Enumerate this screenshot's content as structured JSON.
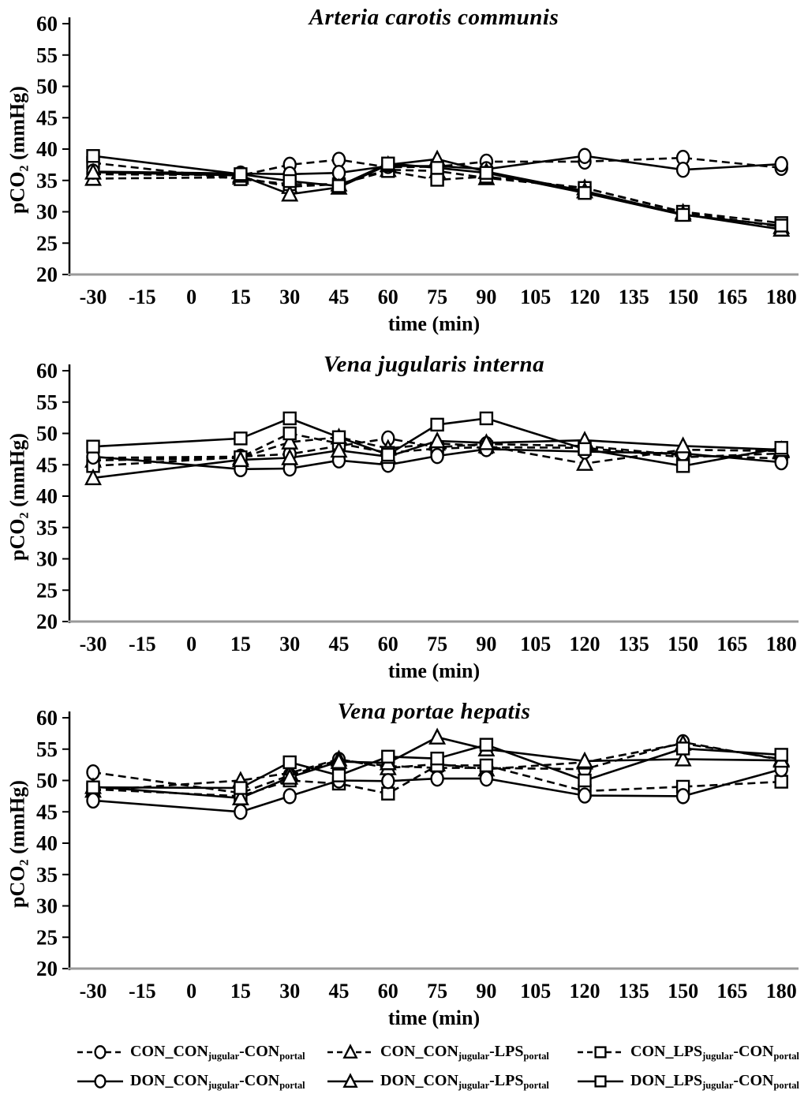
{
  "figure": {
    "ylabel": {
      "main": "pCO",
      "sub": "2",
      "rest": " (mmHg)"
    },
    "xlabel": "time (min)",
    "line_color": "#000000",
    "baseline_color": "#9a9a9a"
  },
  "chart_data": [
    {
      "type": "line",
      "title": "Arteria carotis communis",
      "xlabel": "time (min)",
      "ylabel": "pCO2 (mmHg)",
      "ylim": [
        20,
        60
      ],
      "yticks": [
        20,
        25,
        30,
        35,
        40,
        45,
        50,
        55,
        60
      ],
      "xticks": [
        -30,
        -15,
        0,
        15,
        30,
        45,
        60,
        75,
        90,
        105,
        120,
        135,
        150,
        165,
        180
      ],
      "legend_position": "below-figure",
      "grid": false,
      "x": [
        -30,
        15,
        30,
        45,
        60,
        75,
        90,
        120,
        150,
        180
      ],
      "series": [
        {
          "name": "CON_CON_jugular-CON_portal",
          "marker": "circle",
          "line": "dashed",
          "values": [
            36.0,
            35.8,
            37.5,
            38.3,
            37.1,
            37.2,
            38.0,
            38.0,
            38.6,
            37.0
          ]
        },
        {
          "name": "CON_CON_jugular-LPS_portal",
          "marker": "triangle",
          "line": "dashed",
          "values": [
            35.3,
            35.5,
            34.0,
            34.4,
            36.7,
            36.5,
            35.4,
            33.8,
            29.9,
            27.6
          ]
        },
        {
          "name": "CON_LPS_jugular-CON_portal",
          "marker": "square",
          "line": "dashed",
          "values": [
            37.8,
            35.2,
            34.4,
            34.4,
            36.5,
            35.1,
            35.6,
            33.8,
            30.0,
            28.2
          ]
        },
        {
          "name": "DON_CON_jugular-CON_portal",
          "marker": "circle",
          "line": "solid",
          "values": [
            36.4,
            36.1,
            36.0,
            36.2,
            37.3,
            37.3,
            36.8,
            38.9,
            36.7,
            37.6
          ]
        },
        {
          "name": "DON_CON_jugular-LPS_portal",
          "marker": "triangle",
          "line": "solid",
          "values": [
            36.3,
            35.8,
            32.8,
            33.9,
            37.5,
            38.4,
            36.4,
            33.3,
            29.6,
            27.2
          ]
        },
        {
          "name": "DON_LPS_jugular-CON_portal",
          "marker": "square",
          "line": "solid",
          "values": [
            38.9,
            36.0,
            34.9,
            34.1,
            37.7,
            37.0,
            36.2,
            33.0,
            29.5,
            27.8
          ]
        }
      ]
    },
    {
      "type": "line",
      "title": "Vena jugularis interna",
      "xlabel": "time (min)",
      "ylabel": "pCO2 (mmHg)",
      "ylim": [
        20,
        60
      ],
      "yticks": [
        20,
        25,
        30,
        35,
        40,
        45,
        50,
        55,
        60
      ],
      "xticks": [
        -30,
        -15,
        0,
        15,
        30,
        45,
        60,
        75,
        90,
        105,
        120,
        135,
        150,
        165,
        180
      ],
      "legend_position": "below-figure",
      "grid": false,
      "x": [
        -30,
        15,
        30,
        45,
        60,
        75,
        90,
        120,
        150,
        180
      ],
      "series": [
        {
          "name": "CON_CON_jugular-CON_portal",
          "marker": "circle",
          "line": "dashed",
          "values": [
            46.1,
            46.3,
            46.7,
            48.0,
            49.2,
            47.8,
            48.3,
            48.0,
            46.5,
            46.0
          ]
        },
        {
          "name": "CON_CON_jugular-LPS_portal",
          "marker": "triangle",
          "line": "dashed",
          "values": [
            45.7,
            46.1,
            48.6,
            49.4,
            47.6,
            48.4,
            48.0,
            45.2,
            47.4,
            47.2
          ]
        },
        {
          "name": "CON_LPS_jugular-CON_portal",
          "marker": "square",
          "line": "dashed",
          "values": [
            44.8,
            46.2,
            50.0,
            48.4,
            46.9,
            47.6,
            47.8,
            47.7,
            46.2,
            46.8
          ]
        },
        {
          "name": "DON_CON_jugular-CON_portal",
          "marker": "circle",
          "line": "solid",
          "values": [
            46.3,
            44.3,
            44.4,
            45.7,
            45.0,
            46.4,
            47.5,
            47.1,
            46.8,
            45.4
          ]
        },
        {
          "name": "DON_CON_jugular-LPS_portal",
          "marker": "triangle",
          "line": "solid",
          "values": [
            42.9,
            45.8,
            46.1,
            47.3,
            46.3,
            48.8,
            48.5,
            48.9,
            48.0,
            47.4
          ]
        },
        {
          "name": "DON_LPS_jugular-CON_portal",
          "marker": "square",
          "line": "solid",
          "values": [
            47.9,
            49.2,
            52.4,
            49.4,
            46.6,
            51.4,
            52.4,
            47.5,
            44.8,
            47.7
          ]
        }
      ]
    },
    {
      "type": "line",
      "title": "Vena portae hepatis",
      "xlabel": "time (min)",
      "ylabel": "pCO2 (mmHg)",
      "ylim": [
        20,
        60
      ],
      "yticks": [
        20,
        25,
        30,
        35,
        40,
        45,
        50,
        55,
        60
      ],
      "xticks": [
        -30,
        -15,
        0,
        15,
        30,
        45,
        60,
        75,
        90,
        105,
        120,
        135,
        150,
        165,
        180
      ],
      "legend_position": "below-figure",
      "grid": false,
      "x": [
        -30,
        15,
        30,
        45,
        60,
        75,
        90,
        120,
        150,
        180
      ],
      "series": [
        {
          "name": "CON_CON_jugular-CON_portal",
          "marker": "circle",
          "line": "dashed",
          "values": [
            51.3,
            48.0,
            50.8,
            53.3,
            52.3,
            52.0,
            52.0,
            51.8,
            56.1,
            53.3
          ]
        },
        {
          "name": "CON_CON_jugular-LPS_portal",
          "marker": "triangle",
          "line": "dashed",
          "values": [
            48.4,
            50.0,
            51.2,
            53.4,
            52.0,
            52.6,
            51.8,
            52.9,
            55.9,
            53.4
          ]
        },
        {
          "name": "CON_LPS_jugular-CON_portal",
          "marker": "square",
          "line": "dashed",
          "values": [
            48.6,
            47.5,
            50.0,
            49.5,
            47.9,
            52.4,
            52.4,
            48.3,
            49.0,
            49.8
          ]
        },
        {
          "name": "DON_CON_jugular-CON_portal",
          "marker": "circle",
          "line": "solid",
          "values": [
            46.8,
            45.0,
            47.5,
            50.0,
            49.9,
            50.3,
            50.3,
            47.6,
            47.5,
            51.8
          ]
        },
        {
          "name": "DON_CON_jugular-LPS_portal",
          "marker": "triangle",
          "line": "solid",
          "values": [
            49.0,
            47.2,
            50.5,
            53.0,
            52.8,
            56.9,
            55.0,
            53.1,
            53.4,
            53.2
          ]
        },
        {
          "name": "DON_LPS_jugular-CON_portal",
          "marker": "square",
          "line": "solid",
          "values": [
            48.9,
            48.8,
            52.9,
            50.8,
            53.8,
            53.5,
            55.7,
            50.0,
            55.1,
            54.1
          ]
        }
      ]
    }
  ],
  "legend": {
    "items": [
      {
        "marker": "circle",
        "line": "dashed",
        "label_parts": [
          "CON_CON",
          "jugular",
          "-CON",
          "portal"
        ]
      },
      {
        "marker": "triangle",
        "line": "dashed",
        "label_parts": [
          "CON_CON",
          "jugular",
          "-LPS",
          "portal"
        ]
      },
      {
        "marker": "square",
        "line": "dashed",
        "label_parts": [
          "CON_LPS",
          "jugular",
          "-CON",
          "portal"
        ]
      },
      {
        "marker": "circle",
        "line": "solid",
        "label_parts": [
          "DON_CON",
          "jugular",
          "-CON",
          "portal"
        ]
      },
      {
        "marker": "triangle",
        "line": "solid",
        "label_parts": [
          "DON_CON",
          "jugular",
          "-LPS",
          "portal"
        ]
      },
      {
        "marker": "square",
        "line": "solid",
        "label_parts": [
          "DON_LPS",
          "jugular",
          "-CON",
          "portal"
        ]
      }
    ]
  }
}
